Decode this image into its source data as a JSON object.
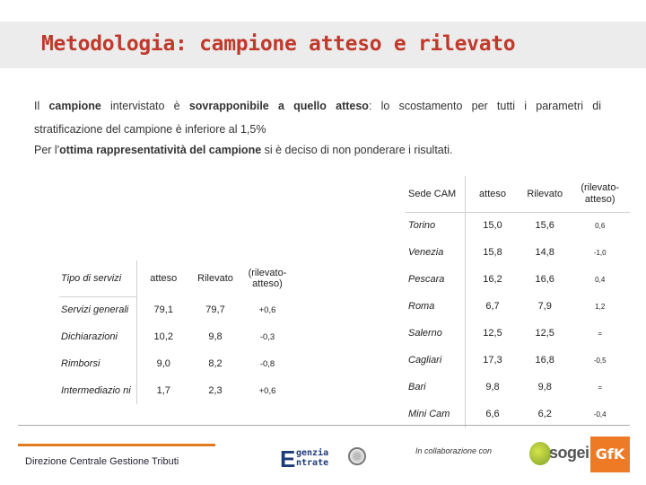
{
  "title": "Metodologia: campione atteso e rilevato",
  "para1": {
    "t1": "Il ",
    "b1": "campione",
    "t2": " intervistato è ",
    "b2": "sovrapponibile a quello atteso",
    "t3": ": lo scostamento per tutti i parametri di"
  },
  "para2": "stratificazione del campione è inferiore al 1,5%",
  "para3": {
    "t1": "Per l'",
    "b1": "ottima rappresentatività del campione",
    "t2": " si è deciso di non ponderare i risultati."
  },
  "left_table": {
    "headers": [
      "Tipo di servizi",
      "atteso",
      "Rilevato",
      "(rilevato-atteso)"
    ],
    "rows": [
      [
        "Servizi generali",
        "79,1",
        "79,7",
        "+0,6"
      ],
      [
        "Dichiarazioni",
        "10,2",
        "9,8",
        "-0,3"
      ],
      [
        "Rimborsi",
        "9,0",
        "8,2",
        "-0,8"
      ],
      [
        "Intermediazio ni",
        "1,7",
        "2,3",
        "+0,6"
      ]
    ]
  },
  "right_table": {
    "headers": [
      "Sede CAM",
      "atteso",
      "Rilevato",
      "(rilevato-atteso)"
    ],
    "rows": [
      [
        "Torino",
        "15,0",
        "15,6",
        "0,6"
      ],
      [
        "Venezia",
        "15,8",
        "14,8",
        "-1,0"
      ],
      [
        "Pescara",
        "16,2",
        "16,6",
        "0,4"
      ],
      [
        "Roma",
        "6,7",
        "7,9",
        "1,2"
      ],
      [
        "Salerno",
        "12,5",
        "12,5",
        "="
      ],
      [
        "Cagliari",
        "17,3",
        "16,8",
        "-0,5"
      ],
      [
        "Bari",
        "9,8",
        "9,8",
        "="
      ],
      [
        "Mini Cam",
        "6,6",
        "6,2",
        "-0,4"
      ]
    ]
  },
  "footer": {
    "department": "Direzione Centrale Gestione Tributi",
    "collab": "In collaborazione con",
    "logo_ae_line1": "genzia",
    "logo_ae_line2": "ntrate",
    "logo_ae_initial": "E",
    "logo_sogei": "sogei",
    "logo_gfk": "GfK"
  },
  "colors": {
    "title": "#c0392b",
    "accent": "#e07b1f",
    "brand_blue": "#1d3b7a"
  }
}
